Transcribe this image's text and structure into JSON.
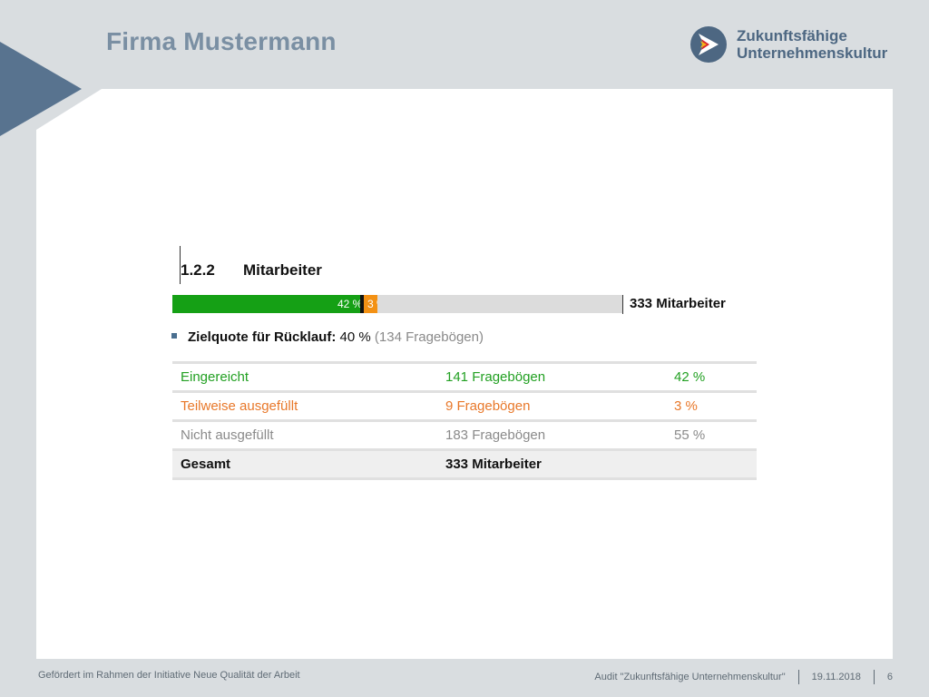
{
  "header": {
    "title": "Firma Mustermann",
    "logo_line1": "Zukunftsfähige",
    "logo_line2": "Unternehmenskultur",
    "logo_icon": "arrow-logo-icon"
  },
  "section": {
    "number": "1.2.2",
    "heading": "Mitarbeiter"
  },
  "progress": {
    "submitted_fraction": 0.42,
    "partial_fraction": 0.03,
    "label_submitted": "42 %",
    "label_partial": "3 %",
    "total": "333 Mitarbeiter"
  },
  "target": {
    "label": "Zielquote für Rücklauf:",
    "percent": "40 %",
    "detail": "(134 Fragebögen)"
  },
  "table": {
    "rows": [
      {
        "label": "Eingereicht",
        "count": "141 Fragebögen",
        "percent": "42 %"
      },
      {
        "label": "Teilweise ausgefüllt",
        "count": "9 Fragebögen",
        "percent": "3 %"
      },
      {
        "label": "Nicht ausgefüllt",
        "count": "183 Fragebögen",
        "percent": "55 %"
      }
    ],
    "total": {
      "label": "Gesamt",
      "count": "333 Mitarbeiter",
      "percent": ""
    }
  },
  "colors": {
    "submitted": "#15a015",
    "partial": "#f39114",
    "remaining": "#dcdcdc",
    "accent": "#58738f"
  },
  "footer": {
    "left": "Gefördert im Rahmen der Initiative Neue Qualität der Arbeit",
    "audit": "Audit \"Zukunftsfähige Unternehmenskultur\"",
    "date": "19.11.2018",
    "page": "6"
  }
}
